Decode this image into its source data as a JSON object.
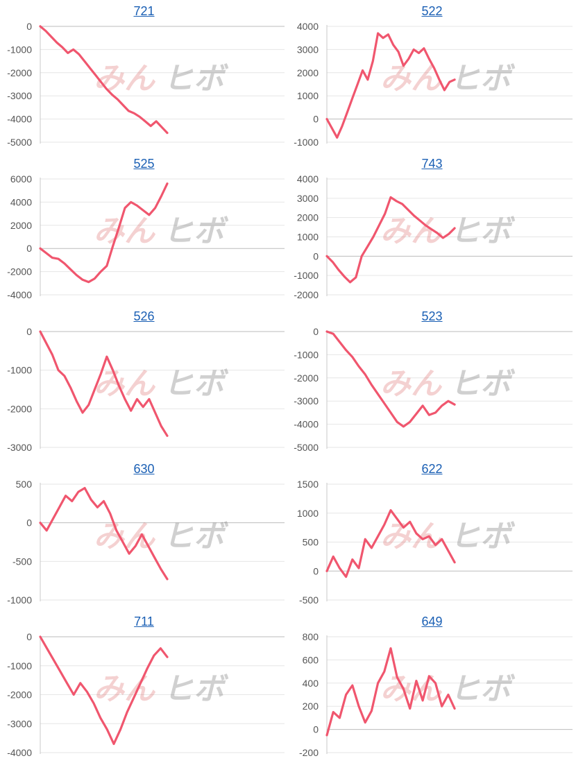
{
  "theme": {
    "series_color": "#f0566e",
    "title_color": "#1a5fb4"
  },
  "watermark": {
    "part1": "みん",
    "part2": "ヒボ"
  },
  "chart_data": [
    {
      "type": "line",
      "title": "721",
      "ylim": [
        -5000,
        0
      ],
      "yticks": [
        0,
        -1000,
        -2000,
        -3000,
        -4000,
        -5000
      ],
      "series": [
        {
          "values": [
            0,
            -200,
            -450,
            -700,
            -900,
            -1150,
            -1000,
            -1200,
            -1500,
            -1800,
            -2100,
            -2400,
            -2700,
            -2950,
            -3150,
            -3400,
            -3650,
            -3750,
            -3900,
            -4100,
            -4300,
            -4100,
            -4350,
            -4600
          ]
        }
      ]
    },
    {
      "type": "line",
      "title": "522",
      "ylim": [
        -1000,
        4000
      ],
      "yticks": [
        4000,
        3000,
        2000,
        1000,
        0,
        -1000
      ],
      "series": [
        {
          "values": [
            0,
            -400,
            -800,
            -300,
            300,
            900,
            1500,
            2100,
            1700,
            2500,
            3700,
            3500,
            3650,
            3200,
            2900,
            2300,
            2600,
            3000,
            2850,
            3050,
            2600,
            2200,
            1700,
            1250,
            1600,
            1700
          ]
        }
      ]
    },
    {
      "type": "line",
      "title": "525",
      "ylim": [
        -4000,
        6000
      ],
      "yticks": [
        6000,
        4000,
        2000,
        0,
        -2000,
        -4000
      ],
      "series": [
        {
          "values": [
            0,
            -400,
            -800,
            -900,
            -1300,
            -1800,
            -2300,
            -2700,
            -2900,
            -2600,
            -2000,
            -1500,
            200,
            1800,
            3500,
            4000,
            3700,
            3300,
            2900,
            3500,
            4500,
            5600
          ]
        }
      ]
    },
    {
      "type": "line",
      "title": "743",
      "ylim": [
        -2000,
        4000
      ],
      "yticks": [
        4000,
        3000,
        2000,
        1000,
        0,
        -1000,
        -2000
      ],
      "series": [
        {
          "values": [
            0,
            -300,
            -700,
            -1050,
            -1350,
            -1100,
            0,
            500,
            1000,
            1600,
            2200,
            3050,
            2850,
            2700,
            2400,
            2100,
            1850,
            1600,
            1400,
            1200,
            950,
            1150,
            1450
          ]
        }
      ]
    },
    {
      "type": "line",
      "title": "526",
      "ylim": [
        -3000,
        0
      ],
      "yticks": [
        0,
        -1000,
        -2000,
        -3000
      ],
      "series": [
        {
          "values": [
            0,
            -300,
            -600,
            -1000,
            -1150,
            -1450,
            -1800,
            -2100,
            -1900,
            -1500,
            -1100,
            -650,
            -1000,
            -1400,
            -1750,
            -2050,
            -1750,
            -1950,
            -1750,
            -2100,
            -2450,
            -2700
          ]
        }
      ]
    },
    {
      "type": "line",
      "title": "523",
      "ylim": [
        -5000,
        0
      ],
      "yticks": [
        0,
        -1000,
        -2000,
        -3000,
        -4000,
        -5000
      ],
      "series": [
        {
          "values": [
            0,
            -100,
            -450,
            -800,
            -1100,
            -1500,
            -1850,
            -2300,
            -2700,
            -3100,
            -3500,
            -3900,
            -4100,
            -3900,
            -3550,
            -3200,
            -3600,
            -3500,
            -3200,
            -3000,
            -3150
          ]
        }
      ]
    },
    {
      "type": "line",
      "title": "630",
      "ylim": [
        -1000,
        500
      ],
      "yticks": [
        500,
        0,
        -500,
        -1000
      ],
      "series": [
        {
          "values": [
            0,
            -100,
            50,
            200,
            350,
            280,
            400,
            450,
            300,
            200,
            280,
            120,
            -100,
            -250,
            -400,
            -300,
            -150,
            -300,
            -450,
            -600,
            -730
          ]
        }
      ]
    },
    {
      "type": "line",
      "title": "622",
      "ylim": [
        -500,
        1500
      ],
      "yticks": [
        1500,
        1000,
        500,
        0,
        -500
      ],
      "series": [
        {
          "values": [
            0,
            250,
            50,
            -100,
            200,
            50,
            550,
            400,
            600,
            800,
            1050,
            900,
            750,
            850,
            650,
            550,
            600,
            450,
            550,
            350,
            150
          ]
        }
      ]
    },
    {
      "type": "line",
      "title": "711",
      "ylim": [
        -4000,
        0
      ],
      "yticks": [
        0,
        -1000,
        -2000,
        -3000,
        -4000
      ],
      "series": [
        {
          "values": [
            0,
            -400,
            -800,
            -1200,
            -1600,
            -2000,
            -1600,
            -1900,
            -2300,
            -2800,
            -3200,
            -3700,
            -3200,
            -2600,
            -2100,
            -1600,
            -1100,
            -650,
            -400,
            -700
          ]
        }
      ]
    },
    {
      "type": "line",
      "title": "649",
      "ylim": [
        -200,
        800
      ],
      "yticks": [
        800,
        600,
        400,
        200,
        0,
        -200
      ],
      "series": [
        {
          "values": [
            -50,
            150,
            100,
            300,
            380,
            200,
            60,
            160,
            400,
            500,
            700,
            450,
            350,
            180,
            420,
            250,
            460,
            400,
            200,
            300,
            180
          ]
        }
      ]
    }
  ]
}
